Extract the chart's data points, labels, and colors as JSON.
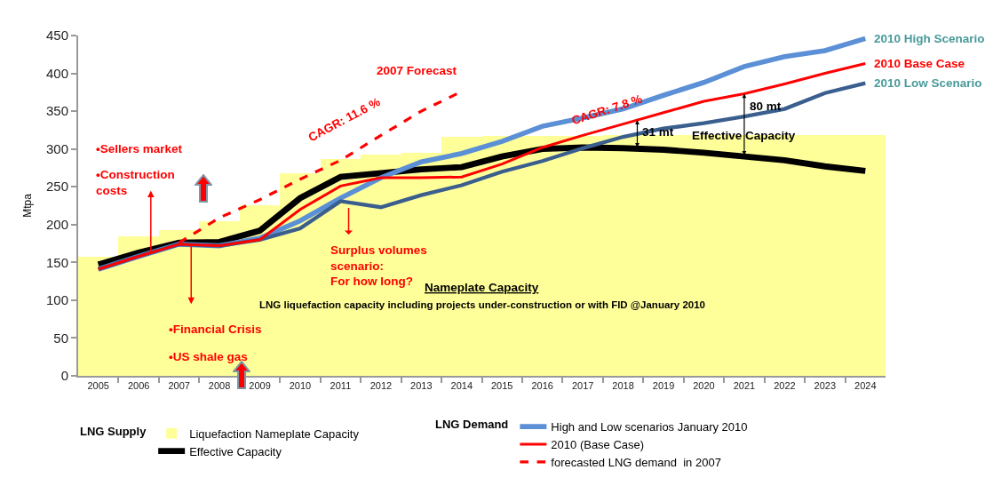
{
  "chart_data": {
    "type": "line",
    "ylabel": "Mtpa",
    "x": [
      2005,
      2006,
      2007,
      2008,
      2009,
      2010,
      2011,
      2012,
      2013,
      2014,
      2015,
      2016,
      2017,
      2018,
      2019,
      2020,
      2021,
      2022,
      2023,
      2024
    ],
    "xlim": [
      2004.5,
      2024.5
    ],
    "xticks": [
      2005,
      2006,
      2007,
      2008,
      2009,
      2010,
      2011,
      2012,
      2013,
      2014,
      2015,
      2016,
      2017,
      2018,
      2019,
      2020,
      2021,
      2022,
      2023,
      2024
    ],
    "ylim": [
      0,
      450
    ],
    "yticks": [
      0,
      50,
      100,
      150,
      200,
      250,
      300,
      350,
      400,
      450
    ],
    "grid": false,
    "marker": "none",
    "legend": "bottom",
    "legend_title": [
      "LNG Supply",
      "LNG Demand"
    ],
    "series": [
      {
        "name": "Liquefaction Nameplate Capacity",
        "type": "bar",
        "color": "#ffff99",
        "values": [
          158,
          184,
          193,
          204,
          226,
          268,
          287,
          292,
          295,
          316,
          317,
          317,
          317,
          318,
          318,
          318,
          318,
          318,
          318,
          318
        ]
      },
      {
        "name": "Effective Capacity",
        "color": "#000000",
        "values": [
          147,
          163,
          176,
          177,
          192,
          235,
          263,
          268,
          273,
          276,
          290,
          300,
          302,
          301,
          299,
          295,
          290,
          285,
          277,
          271
        ]
      },
      {
        "name": "High and Low scenarios January 2010",
        "color": "#5b8fd6",
        "values": [
          141,
          158,
          174,
          172,
          182,
          205,
          235,
          262,
          283,
          294,
          310,
          330,
          341,
          353,
          371,
          388,
          409,
          422,
          430,
          446
        ]
      },
      {
        "color": "#3a5f8f",
        "values": [
          141,
          158,
          174,
          172,
          180,
          195,
          231,
          223,
          239,
          252,
          270,
          284,
          301,
          316,
          327,
          334,
          343,
          353,
          374,
          387
        ]
      },
      {
        "name": "2010 (Base Case)",
        "color": "#ff0000",
        "values": [
          141,
          158,
          174,
          172,
          180,
          220,
          251,
          262,
          262,
          263,
          280,
          302,
          318,
          333,
          348,
          363,
          373,
          386,
          400,
          413
        ]
      },
      {
        "name": "forecasted LNG demand  in 2007",
        "color": "#ff0000",
        "line_style": "dashed",
        "x": [
          2007,
          2008,
          2009,
          2010,
          2011,
          2012,
          2013,
          2014
        ],
        "values": [
          176,
          209,
          233,
          260,
          285,
          318,
          350,
          376
        ]
      }
    ],
    "annotations": [
      "2007 Forecast",
      "CAGR: 11.6 %",
      {
        "text": "CAGR: 7.8 %",
        "x": 2017.6,
        "y": 326
      },
      {
        "text": "31 mt",
        "x": 2018.35,
        "y": 338
      },
      {
        "text": "80 mt",
        "x": 2021,
        "y": 373
      },
      {
        "text": "Effective Capacity",
        "x": 2021,
        "y": 290
      },
      {
        "text": "2010 High Scenario",
        "x": 2024,
        "y": 446
      },
      {
        "text": "2010 Base Case",
        "x": 2024,
        "y": 413
      },
      {
        "text": "2010 Low Scenario",
        "x": 2024,
        "y": 387
      },
      {
        "text": "Surplus volumes\nscenario:\nFor how long?",
        "x": 2011.2,
        "y": 225
      },
      "•Sellers market",
      "•Construction\ncosts",
      "•Financial Crisis",
      "•US shale gas",
      "Nameplate Capacity",
      "LNG liquefaction capacity including projects under-construction or with FID @January 2010"
    ]
  }
}
